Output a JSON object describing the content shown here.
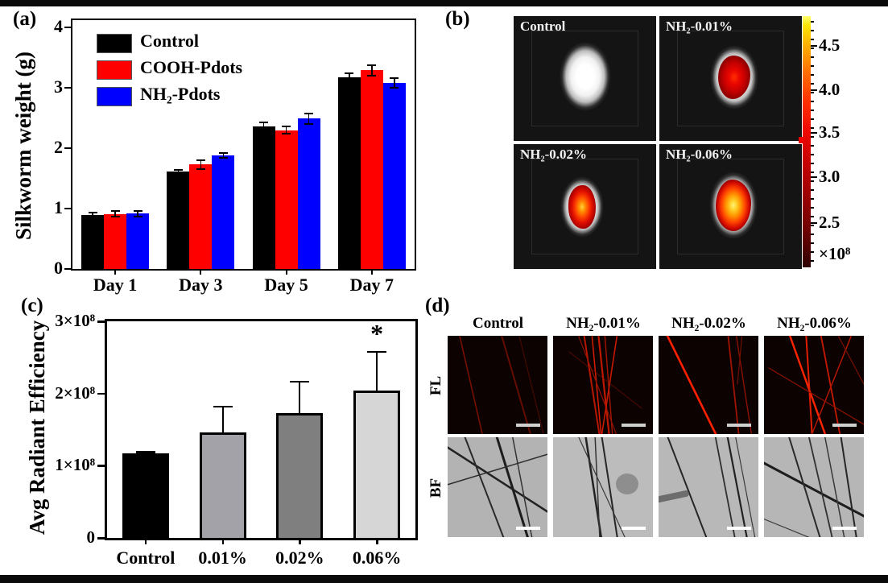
{
  "panel_a": {
    "label": "(a)"
  },
  "panel_b": {
    "label": "(b)",
    "images": [
      {
        "label": "Control",
        "fluorescence": "none"
      },
      {
        "label": "NH₂-0.01%",
        "fluorescence": "low"
      },
      {
        "label": "NH₂-0.02%",
        "fluorescence": "medium"
      },
      {
        "label": "NH₂-0.06%",
        "fluorescence": "high"
      }
    ],
    "colorbar": {
      "tick_labels": [
        "4.5",
        "4.0",
        "3.5",
        "3.0",
        "2.5"
      ],
      "multiplier": "×10⁸"
    }
  },
  "panel_c": {
    "label": "(c)",
    "significance_marker": "*"
  },
  "panel_d": {
    "label": "(d)",
    "columns": [
      "Control",
      "NH₂-0.01%",
      "NH₂-0.02%",
      "NH₂-0.06%"
    ],
    "rows": [
      "FL",
      "BF"
    ]
  },
  "chart_data": [
    {
      "panel": "a",
      "type": "bar",
      "title": "",
      "ylabel": "Silkworm weight (g)",
      "ylim": [
        0,
        4
      ],
      "yticks": [
        0,
        1,
        2,
        3,
        4
      ],
      "grid": false,
      "legend_position": "top-left-inside",
      "categories": [
        "Day 1",
        "Day 3",
        "Day 5",
        "Day 7"
      ],
      "series": [
        {
          "name": "Control",
          "color": "#000000",
          "values": [
            0.9,
            1.62,
            2.36,
            3.18
          ],
          "errors": [
            0.05,
            0.04,
            0.08,
            0.08
          ]
        },
        {
          "name": "COOH-Pdots",
          "color": "#ff0000",
          "values": [
            0.91,
            1.73,
            2.3,
            3.29
          ],
          "errors": [
            0.06,
            0.09,
            0.07,
            0.1
          ]
        },
        {
          "name": "NH₂-Pdots",
          "color": "#0000ff",
          "values": [
            0.92,
            1.88,
            2.49,
            3.08
          ],
          "errors": [
            0.06,
            0.05,
            0.1,
            0.09
          ]
        }
      ]
    },
    {
      "panel": "c",
      "type": "bar",
      "title": "",
      "ylabel": "Avg Radiant Efficiency",
      "value_scale": "×10⁸",
      "ylim": [
        0,
        3
      ],
      "ytick_labels": [
        "0",
        "1×10⁸",
        "2×10⁸",
        "3×10⁸"
      ],
      "grid": false,
      "categories": [
        "Control",
        "0.01%",
        "0.02%",
        "0.06%"
      ],
      "values": [
        1.17,
        1.46,
        1.73,
        2.04
      ],
      "errors": [
        0.03,
        0.37,
        0.45,
        0.55
      ],
      "bar_colors": [
        "#000000",
        "#a2a2a8",
        "#7f7f7f",
        "#d6d6d6"
      ],
      "significance": {
        "category": "0.06%",
        "marker": "*"
      }
    }
  ]
}
